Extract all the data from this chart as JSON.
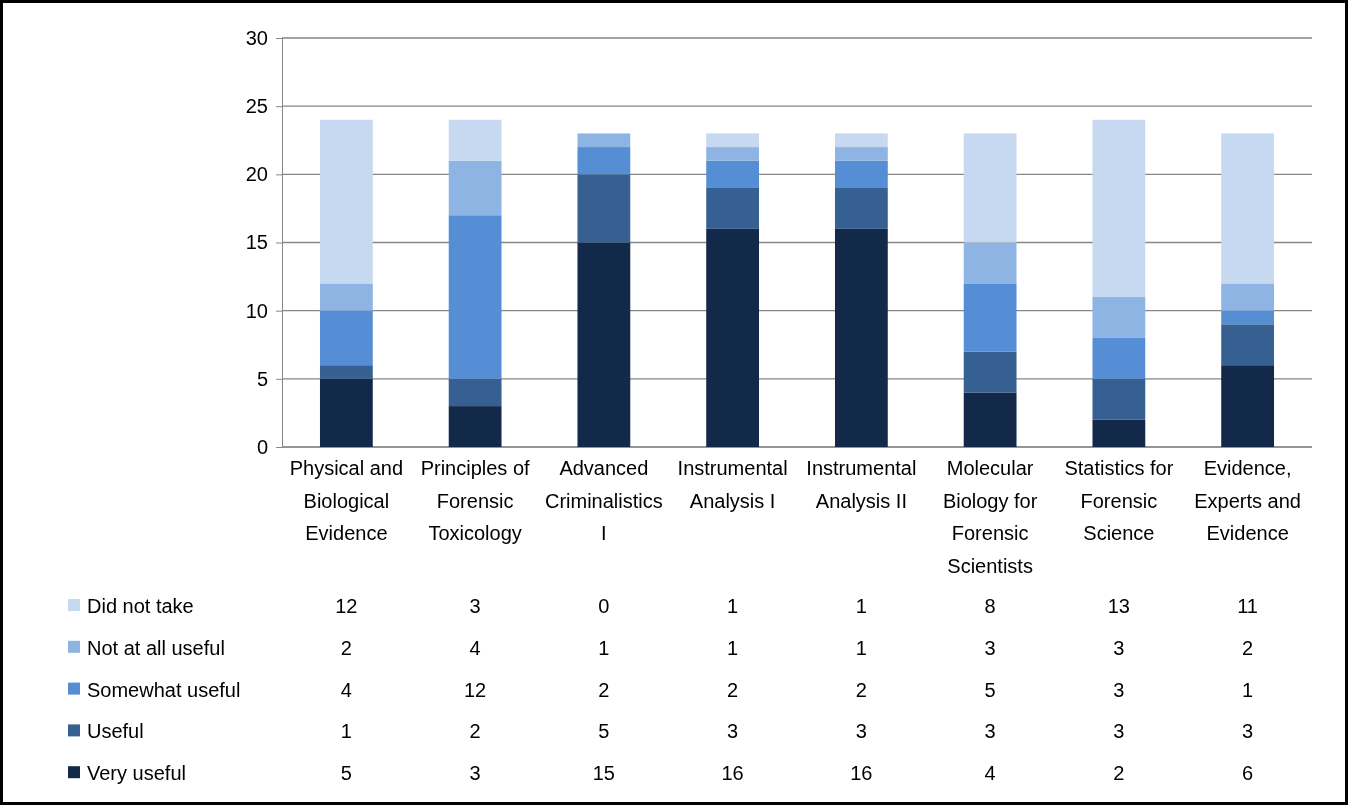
{
  "chart_data": {
    "type": "bar",
    "stacked": true,
    "categories": [
      "Physical and Biological Evidence",
      "Principles of Forensic Toxicology",
      "Advanced Criminalistics I",
      "Instrumental Analysis I",
      "Instrumental Analysis II",
      "Molecular Biology for Forensic Scientists",
      "Statistics for Forensic Science",
      "Evidence, Experts and Evidence"
    ],
    "series": [
      {
        "name": "Very useful",
        "color": "#13294a",
        "values": [
          5,
          3,
          15,
          16,
          16,
          4,
          2,
          6
        ]
      },
      {
        "name": "Useful",
        "color": "#366092",
        "values": [
          1,
          2,
          5,
          3,
          3,
          3,
          3,
          3
        ]
      },
      {
        "name": "Somewhat useful",
        "color": "#558ed5",
        "values": [
          4,
          12,
          2,
          2,
          2,
          5,
          3,
          1
        ]
      },
      {
        "name": "Not at all useful",
        "color": "#8eb4e3",
        "values": [
          2,
          4,
          1,
          1,
          1,
          3,
          3,
          2
        ]
      },
      {
        "name": "Did not take",
        "color": "#c6d9f1",
        "values": [
          12,
          3,
          0,
          1,
          1,
          8,
          13,
          11
        ]
      }
    ],
    "ylim": [
      0,
      30
    ],
    "yticks": [
      0,
      5,
      10,
      15,
      20,
      25,
      30
    ],
    "grid": "y",
    "legend": "bottom",
    "data_labels": true
  }
}
